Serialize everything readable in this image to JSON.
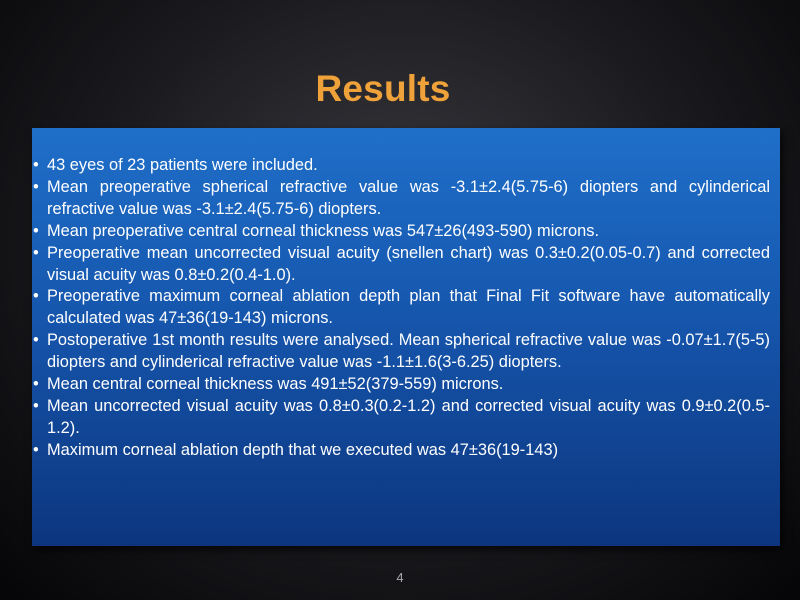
{
  "slide": {
    "title": "Results",
    "page_number": "4",
    "bullets": [
      "43 eyes of 23 patients were included.",
      "Mean preoperative spherical refractive value was -3.1±2.4(5.75-6) diopters and cylinderical refractive value was -3.1±2.4(5.75-6) diopters.",
      "Mean preoperative central corneal thickness was 547±26(493-590) microns.",
      " Preoperative mean uncorrected visual acuity (snellen chart) was 0.3±0.2(0.05-0.7) and corrected visual acuity was 0.8±0.2(0.4-1.0).",
      "Preoperative maximum corneal ablation depth plan that Final Fit software have automatically calculated was 47±36(19-143) microns.",
      "Postoperative 1st month results were analysed. Mean spherical refractive value was -0.07±1.7(5-5) diopters and cylinderical refractive value was -1.1±1.6(3-6.25) diopters.",
      "Mean central corneal thickness was 491±52(379-559) microns.",
      "Mean uncorrected visual acuity was 0.8±0.3(0.2-1.2) and corrected visual acuity was 0.9±0.2(0.5-1.2).",
      "Maximum corneal ablation depth that we executed was 47±36(19-143)"
    ]
  },
  "colors": {
    "title": "#f0a23a",
    "box_top": "#1f6fc9",
    "box_bottom": "#0c357e",
    "text": "#ffffff",
    "page_number": "#a8a8ae"
  }
}
